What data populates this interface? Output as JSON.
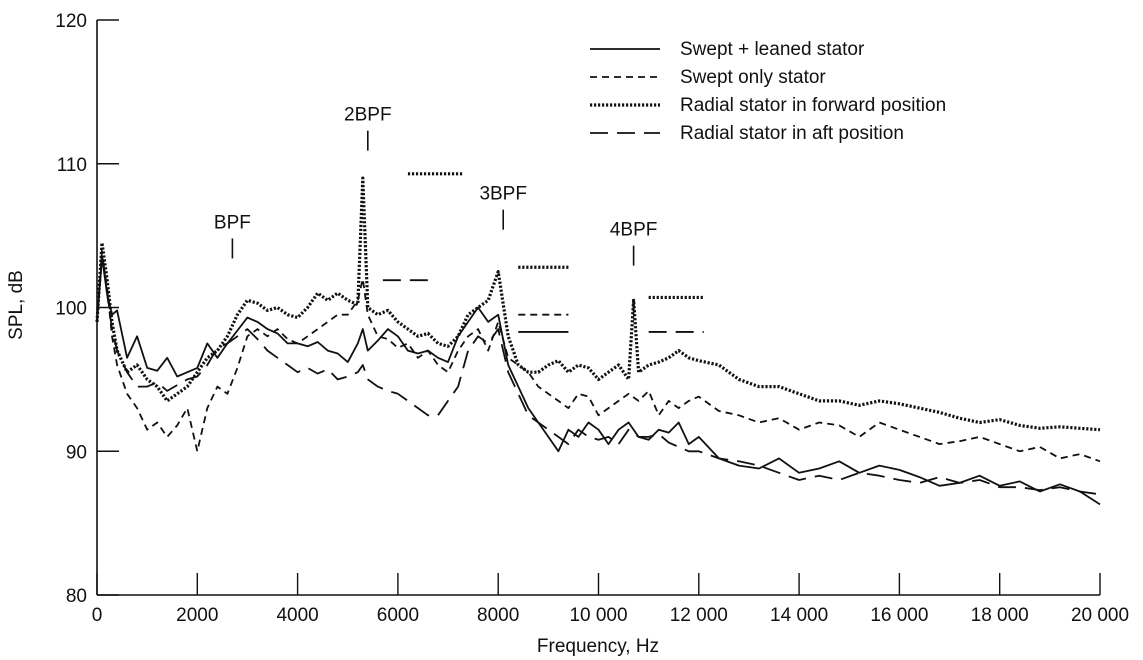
{
  "chart_data": {
    "type": "line",
    "title": "",
    "xlabel": "Frequency, Hz",
    "ylabel": "SPL, dB",
    "xlim": [
      0,
      20000
    ],
    "ylim": [
      80,
      120
    ],
    "x_ticks": [
      0,
      2000,
      4000,
      6000,
      8000,
      10000,
      12000,
      14000,
      16000,
      18000,
      20000
    ],
    "x_tick_labels": [
      "0",
      "2000",
      "4000",
      "6000",
      "8000",
      "10 000",
      "12 000",
      "14 000",
      "16 000",
      "18 000",
      "20 000"
    ],
    "y_ticks": [
      80,
      90,
      100,
      110,
      120
    ],
    "y_tick_labels": [
      "80",
      "90",
      "100",
      "110",
      "120"
    ],
    "grid": false,
    "legend_position": "top-right",
    "series": [
      {
        "name": "Swept + leaned stator",
        "line_style": "solid",
        "x": [
          0,
          100,
          200,
          300,
          400,
          600,
          800,
          1000,
          1200,
          1400,
          1600,
          1800,
          2000,
          2200,
          2400,
          2600,
          2800,
          3000,
          3200,
          3400,
          3600,
          3800,
          4000,
          4200,
          4400,
          4600,
          4800,
          5000,
          5200,
          5300,
          5400,
          5600,
          5800,
          6000,
          6200,
          6400,
          6600,
          6800,
          7000,
          7200,
          7400,
          7600,
          7800,
          8000,
          8200,
          8400,
          8600,
          8800,
          9000,
          9200,
          9400,
          9600,
          9800,
          10000,
          10200,
          10400,
          10600,
          10800,
          11000,
          11200,
          11400,
          11600,
          11800,
          12000,
          12400,
          12800,
          13200,
          13600,
          14000,
          14400,
          14800,
          15200,
          15600,
          16000,
          16400,
          16800,
          17200,
          17600,
          18000,
          18400,
          18800,
          19200,
          19600,
          20000
        ],
        "y": [
          99,
          103.5,
          101,
          99.5,
          99.8,
          96.5,
          98,
          95.8,
          95.6,
          96.5,
          95.2,
          95.5,
          95.8,
          97.5,
          96.5,
          97.5,
          98.4,
          99.3,
          99,
          98.5,
          98.2,
          97.5,
          97.5,
          97.3,
          97.6,
          97,
          96.8,
          96.2,
          97.5,
          98.5,
          97,
          97.7,
          98.5,
          98,
          97,
          96.8,
          97,
          96.5,
          96.2,
          98,
          99,
          100,
          99,
          99.5,
          96,
          94.5,
          93,
          92,
          91,
          90,
          91.5,
          91,
          92,
          91.5,
          90.5,
          91.5,
          92,
          91,
          90.8,
          91.5,
          91.3,
          92,
          90.5,
          91,
          89.5,
          89,
          88.8,
          89.5,
          88.5,
          88.8,
          89.3,
          88.5,
          89,
          88.7,
          88.2,
          87.6,
          87.8,
          88.3,
          87.6,
          87.9,
          87.2,
          87.7,
          87.2,
          86.3
        ]
      },
      {
        "name": "Swept only stator",
        "line_style": "dashed",
        "x": [
          0,
          100,
          200,
          300,
          400,
          600,
          800,
          1000,
          1200,
          1400,
          1600,
          1800,
          2000,
          2200,
          2400,
          2600,
          2800,
          3000,
          3200,
          3400,
          3600,
          3800,
          4000,
          4200,
          4400,
          4600,
          4800,
          5000,
          5200,
          5300,
          5400,
          5600,
          5800,
          6000,
          6200,
          6400,
          6600,
          6800,
          7000,
          7200,
          7400,
          7600,
          7800,
          8000,
          8200,
          8400,
          8600,
          8800,
          9000,
          9200,
          9400,
          9600,
          9800,
          10000,
          10200,
          10400,
          10600,
          10800,
          11000,
          11200,
          11400,
          11600,
          11800,
          12000,
          12400,
          12800,
          13200,
          13600,
          14000,
          14400,
          14800,
          15200,
          15600,
          16000,
          16400,
          16800,
          17200,
          17600,
          18000,
          18400,
          18800,
          19200,
          19600,
          20000
        ],
        "y": [
          99,
          103.5,
          101.5,
          98,
          96,
          94,
          93,
          91.5,
          92,
          91,
          91.8,
          93,
          90,
          93,
          94.5,
          94,
          95.8,
          98,
          98.5,
          98,
          98.5,
          97.8,
          97.5,
          98,
          98.5,
          99,
          99.5,
          99.5,
          100.5,
          102,
          99.5,
          98,
          97.8,
          97.2,
          97.5,
          96.5,
          97,
          96,
          95.5,
          97,
          98,
          98.5,
          97,
          99,
          96.5,
          96,
          95.5,
          94.5,
          94,
          93.5,
          93,
          94,
          93.8,
          92.5,
          93,
          93.5,
          94,
          93.5,
          94.2,
          92.5,
          93.5,
          93,
          93.5,
          93.8,
          92.8,
          92.5,
          92,
          92.3,
          91.5,
          92,
          91.8,
          91,
          92,
          91.5,
          91,
          90.5,
          90.7,
          91,
          90.5,
          90,
          90.3,
          89.5,
          89.8,
          89.3
        ]
      },
      {
        "name": "Radial stator in forward position",
        "line_style": "dotted",
        "x": [
          0,
          100,
          200,
          300,
          400,
          600,
          800,
          1000,
          1200,
          1400,
          1600,
          1800,
          2000,
          2200,
          2400,
          2600,
          2800,
          3000,
          3200,
          3400,
          3600,
          3800,
          4000,
          4200,
          4400,
          4600,
          4800,
          5000,
          5200,
          5300,
          5400,
          5600,
          5800,
          6000,
          6200,
          6400,
          6600,
          6800,
          7000,
          7200,
          7400,
          7600,
          7800,
          8000,
          8200,
          8400,
          8600,
          8800,
          9000,
          9200,
          9400,
          9600,
          9800,
          10000,
          10200,
          10400,
          10600,
          10700,
          10800,
          11000,
          11200,
          11400,
          11600,
          11800,
          12000,
          12400,
          12800,
          13200,
          13600,
          14000,
          14400,
          14800,
          15200,
          15600,
          16000,
          16400,
          16800,
          17200,
          17600,
          18000,
          18400,
          18800,
          19200,
          19600,
          20000
        ],
        "y": [
          99,
          104.5,
          102,
          99,
          97,
          95.5,
          96,
          95,
          94.5,
          93.5,
          94,
          94.5,
          95.5,
          96.5,
          97,
          98,
          99.5,
          100.5,
          100.3,
          99.8,
          100,
          99.5,
          99.3,
          100,
          101,
          100.5,
          101,
          100.5,
          100.2,
          109,
          100,
          99.5,
          99.8,
          99,
          98.5,
          98,
          98.2,
          97.5,
          97.3,
          98,
          99.5,
          100,
          100.5,
          102.5,
          98,
          96,
          95.5,
          95.5,
          96,
          96.3,
          95.5,
          96,
          95.8,
          95,
          95.5,
          96,
          95,
          100.5,
          95.5,
          96,
          96.2,
          96.5,
          97,
          96.5,
          96.3,
          96,
          95,
          94.5,
          94.5,
          94,
          93.5,
          93.5,
          93.2,
          93.5,
          93.3,
          93,
          92.7,
          92.3,
          92,
          92.2,
          91.8,
          91.6,
          91.7,
          91.6,
          91.5
        ]
      },
      {
        "name": "Radial stator in aft position",
        "line_style": "long-dashed",
        "x": [
          0,
          100,
          200,
          300,
          400,
          600,
          800,
          1000,
          1200,
          1400,
          1600,
          1800,
          2000,
          2200,
          2400,
          2600,
          2800,
          3000,
          3200,
          3400,
          3600,
          3800,
          4000,
          4200,
          4400,
          4600,
          4800,
          5000,
          5200,
          5300,
          5400,
          5600,
          5800,
          6000,
          6200,
          6400,
          6600,
          6800,
          7000,
          7200,
          7400,
          7600,
          7800,
          8000,
          8200,
          8400,
          8600,
          8800,
          9000,
          9200,
          9400,
          9600,
          9800,
          10000,
          10200,
          10400,
          10600,
          10800,
          11000,
          11200,
          11400,
          11600,
          11800,
          12000,
          12400,
          12800,
          13200,
          13600,
          14000,
          14400,
          14800,
          15200,
          15600,
          16000,
          16400,
          16800,
          17200,
          17600,
          18000,
          18400,
          18800,
          19200,
          19600,
          20000
        ],
        "y": [
          99,
          104,
          101,
          98.5,
          97,
          95.5,
          94.5,
          94.5,
          94.8,
          94.2,
          94.6,
          95,
          95.2,
          96,
          97.2,
          97.5,
          98,
          98.5,
          97.8,
          97,
          96.5,
          96,
          95.5,
          95.8,
          95.4,
          95.7,
          95,
          95.2,
          95.5,
          96,
          95,
          94.5,
          94.2,
          94,
          93.5,
          93,
          92.5,
          92.5,
          93.5,
          94.5,
          97,
          98,
          97.5,
          98.5,
          95.5,
          94,
          92.5,
          92,
          91.5,
          91,
          90.5,
          91.5,
          91,
          90.8,
          91,
          90.5,
          91.5,
          91,
          91,
          91.2,
          90.6,
          90.3,
          90,
          90,
          89.5,
          89.3,
          89,
          88.5,
          88,
          88.3,
          88,
          88.5,
          88.3,
          88,
          87.8,
          88.2,
          87.8,
          88,
          87.5,
          87.5,
          87.3,
          87.5,
          87.2,
          87
        ]
      }
    ],
    "peak_labels": [
      {
        "label": "BPF",
        "x": 2700,
        "y": 105.5
      },
      {
        "label": "2BPF",
        "x": 5400,
        "y": 113
      },
      {
        "label": "3BPF",
        "x": 8100,
        "y": 107.5
      },
      {
        "label": "4BPF",
        "x": 10700,
        "y": 105
      }
    ],
    "tone_levels": [
      {
        "style": "dotted",
        "x1": 6200,
        "x2": 7300,
        "y": 109.3
      },
      {
        "style": "long-dashed",
        "x1": 5700,
        "x2": 6700,
        "y": 101.9
      },
      {
        "style": "dotted",
        "x1": 8400,
        "x2": 9400,
        "y": 102.8
      },
      {
        "style": "dashed",
        "x1": 8400,
        "x2": 9400,
        "y": 99.5
      },
      {
        "style": "solid",
        "x1": 8400,
        "x2": 9400,
        "y": 98.3
      },
      {
        "style": "dotted",
        "x1": 11000,
        "x2": 12100,
        "y": 100.7
      },
      {
        "style": "long-dashed",
        "x1": 11000,
        "x2": 12100,
        "y": 98.3
      }
    ]
  }
}
